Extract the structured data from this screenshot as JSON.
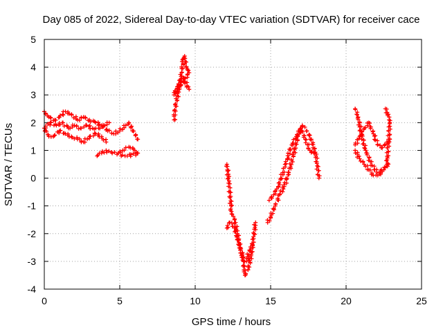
{
  "chart_data": {
    "type": "scatter",
    "title": "Day 085 of 2022, Sidereal Day-to-day VTEC variation (SDTVAR) for receiver cace",
    "xlabel": "GPS time / hours",
    "ylabel": "SDTVAR / TECUs",
    "xlim": [
      0,
      25
    ],
    "ylim": [
      -4,
      5
    ],
    "xticks": [
      "0",
      "5",
      "10",
      "15",
      "20",
      "25"
    ],
    "yticks": [
      "-4",
      "-3",
      "-2",
      "-1",
      "0",
      "1",
      "2",
      "3",
      "4",
      "5"
    ],
    "grid": true,
    "marker": "+",
    "color": "#ff0000",
    "series": [
      {
        "points": [
          [
            0.0,
            2.4
          ],
          [
            0.3,
            2.2
          ],
          [
            0.7,
            2.1
          ],
          [
            1.0,
            2.2
          ],
          [
            1.4,
            2.4
          ],
          [
            1.8,
            2.3
          ],
          [
            2.2,
            2.1
          ],
          [
            2.6,
            2.2
          ],
          [
            3.0,
            2.1
          ],
          [
            3.4,
            2.0
          ],
          [
            3.8,
            1.9
          ],
          [
            4.2,
            1.7
          ],
          [
            4.6,
            1.6
          ],
          [
            5.0,
            1.7
          ],
          [
            5.4,
            1.9
          ],
          [
            5.6,
            2.0
          ],
          [
            5.9,
            1.7
          ],
          [
            6.2,
            1.4
          ]
        ]
      },
      {
        "points": [
          [
            0.0,
            1.8
          ],
          [
            0.4,
            2.0
          ],
          [
            0.8,
            1.9
          ],
          [
            1.2,
            2.0
          ],
          [
            1.6,
            1.8
          ],
          [
            2.0,
            1.9
          ],
          [
            2.4,
            1.8
          ],
          [
            2.8,
            1.9
          ],
          [
            3.2,
            1.8
          ],
          [
            3.6,
            1.8
          ],
          [
            4.0,
            1.9
          ],
          [
            4.3,
            2.0
          ]
        ]
      },
      {
        "points": [
          [
            0.0,
            1.8
          ],
          [
            0.3,
            1.5
          ],
          [
            0.6,
            1.5
          ],
          [
            1.0,
            1.7
          ],
          [
            1.4,
            1.6
          ],
          [
            1.8,
            1.5
          ],
          [
            2.2,
            1.4
          ],
          [
            2.6,
            1.3
          ],
          [
            3.0,
            1.5
          ],
          [
            3.4,
            1.6
          ],
          [
            3.8,
            1.5
          ],
          [
            4.1,
            1.3
          ]
        ]
      },
      {
        "points": [
          [
            3.5,
            0.8
          ],
          [
            3.8,
            0.9
          ],
          [
            4.1,
            1.0
          ],
          [
            4.5,
            0.9
          ],
          [
            4.9,
            0.9
          ],
          [
            5.2,
            1.0
          ],
          [
            5.4,
            1.1
          ],
          [
            5.7,
            1.1
          ],
          [
            6.0,
            1.0
          ],
          [
            6.2,
            0.9
          ],
          [
            5.5,
            0.8
          ],
          [
            5.1,
            0.8
          ]
        ]
      },
      {
        "points": [
          [
            8.6,
            2.1
          ],
          [
            8.7,
            2.6
          ],
          [
            8.9,
            3.2
          ],
          [
            9.1,
            3.8
          ],
          [
            9.2,
            4.3
          ],
          [
            9.3,
            4.4
          ],
          [
            9.4,
            4.0
          ],
          [
            9.6,
            3.8
          ],
          [
            8.6,
            3.0
          ],
          [
            8.9,
            3.4
          ],
          [
            9.2,
            3.6
          ],
          [
            9.6,
            3.2
          ]
        ]
      },
      {
        "points": [
          [
            12.1,
            0.5
          ],
          [
            12.2,
            0.0
          ],
          [
            12.3,
            -0.5
          ],
          [
            12.4,
            -1.2
          ],
          [
            12.6,
            -1.5
          ],
          [
            12.8,
            -2.0
          ],
          [
            13.0,
            -2.5
          ],
          [
            13.2,
            -3.0
          ],
          [
            13.3,
            -3.5
          ],
          [
            13.5,
            -3.3
          ],
          [
            13.7,
            -2.8
          ],
          [
            13.9,
            -2.0
          ],
          [
            14.0,
            -1.6
          ]
        ]
      },
      {
        "points": [
          [
            12.1,
            -1.8
          ],
          [
            12.3,
            -1.6
          ],
          [
            12.6,
            -1.8
          ],
          [
            12.8,
            -2.2
          ],
          [
            13.0,
            -2.6
          ],
          [
            13.2,
            -3.0
          ],
          [
            13.4,
            -3.0
          ],
          [
            13.6,
            -2.6
          ],
          [
            13.8,
            -2.4
          ]
        ]
      },
      {
        "points": [
          [
            14.8,
            -1.6
          ],
          [
            15.0,
            -1.4
          ],
          [
            15.3,
            -1.0
          ],
          [
            15.6,
            -0.6
          ],
          [
            15.9,
            -0.3
          ],
          [
            16.2,
            0.2
          ],
          [
            16.5,
            0.8
          ],
          [
            16.8,
            1.5
          ],
          [
            17.1,
            1.9
          ],
          [
            17.4,
            1.7
          ],
          [
            17.7,
            1.4
          ],
          [
            18.0,
            0.8
          ],
          [
            18.2,
            0.0
          ]
        ]
      },
      {
        "points": [
          [
            14.9,
            -0.8
          ],
          [
            15.2,
            -0.6
          ],
          [
            15.5,
            -0.3
          ],
          [
            15.8,
            0.2
          ],
          [
            16.1,
            0.7
          ],
          [
            16.4,
            1.2
          ],
          [
            16.7,
            1.5
          ],
          [
            17.0,
            1.8
          ],
          [
            17.3,
            1.4
          ],
          [
            17.6,
            1.0
          ],
          [
            17.9,
            0.9
          ]
        ]
      },
      {
        "points": [
          [
            20.6,
            2.5
          ],
          [
            20.8,
            2.2
          ],
          [
            21.0,
            1.6
          ],
          [
            21.3,
            1.0
          ],
          [
            21.6,
            0.6
          ],
          [
            21.9,
            0.3
          ],
          [
            22.2,
            0.2
          ],
          [
            22.5,
            0.3
          ],
          [
            22.8,
            0.5
          ]
        ]
      },
      {
        "points": [
          [
            20.6,
            1.2
          ],
          [
            20.9,
            1.5
          ],
          [
            21.2,
            1.8
          ],
          [
            21.5,
            2.0
          ],
          [
            21.8,
            1.6
          ],
          [
            22.1,
            1.2
          ],
          [
            22.4,
            1.1
          ],
          [
            22.7,
            1.3
          ],
          [
            22.9,
            1.4
          ]
        ]
      },
      {
        "points": [
          [
            20.6,
            1.0
          ],
          [
            20.9,
            0.7
          ],
          [
            21.2,
            0.5
          ],
          [
            21.5,
            0.3
          ],
          [
            21.8,
            0.1
          ],
          [
            22.1,
            0.1
          ],
          [
            22.5,
            0.3
          ],
          [
            22.7,
            0.5
          ],
          [
            22.9,
            2.0
          ],
          [
            22.8,
            2.3
          ],
          [
            22.6,
            2.5
          ]
        ]
      }
    ]
  }
}
